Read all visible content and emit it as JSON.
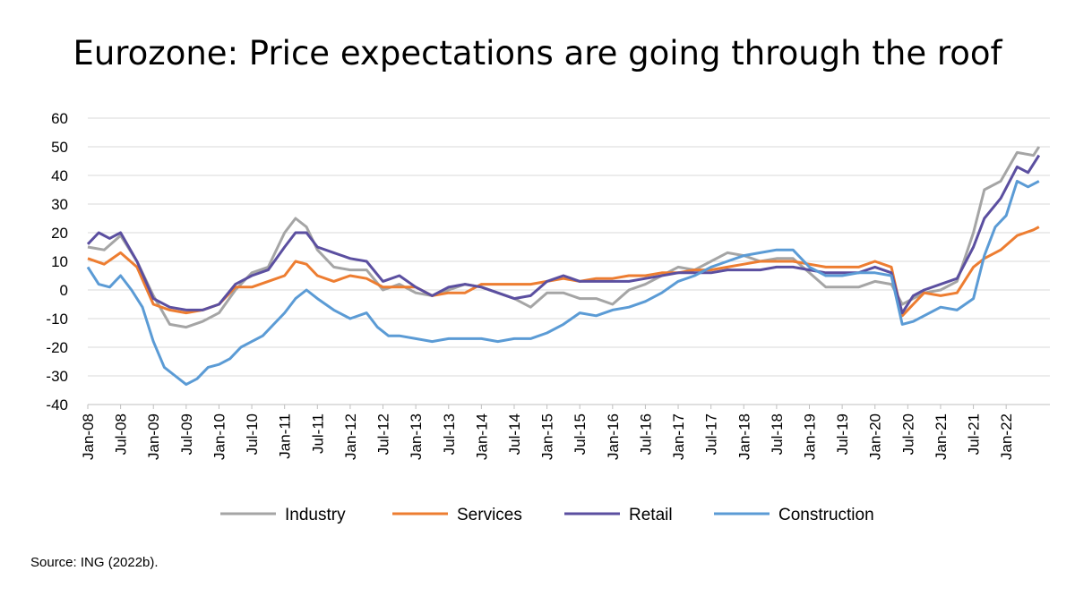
{
  "chart_data": {
    "type": "line",
    "title": "Eurozone: Price expectations are going through the roof",
    "xlabel": "",
    "ylabel": "",
    "ylim": [
      -40,
      60
    ],
    "yticks": [
      -40,
      -30,
      -20,
      -10,
      0,
      10,
      20,
      30,
      40,
      50,
      60
    ],
    "grid": true,
    "legend_position": "bottom",
    "xtick_labels": [
      "Jan-08",
      "Jul-08",
      "Jan-09",
      "Jul-09",
      "Jan-10",
      "Jul-10",
      "Jan-11",
      "Jul-11",
      "Jan-12",
      "Jul-12",
      "Jan-13",
      "Jul-13",
      "Jan-14",
      "Jul-14",
      "Jan-15",
      "Jul-15",
      "Jan-16",
      "Jul-16",
      "Jan-17",
      "Jul-17",
      "Jan-18",
      "Jul-18",
      "Jan-19",
      "Jul-19",
      "Jan-20",
      "Jul-20",
      "Jan-21",
      "Jul-21",
      "Jan-22"
    ],
    "x_unit": "months since Jan-08",
    "series": [
      {
        "name": "Industry",
        "color": "#a5a5a5",
        "points": [
          [
            0,
            15
          ],
          [
            3,
            14
          ],
          [
            6,
            19
          ],
          [
            9,
            10
          ],
          [
            12,
            -2
          ],
          [
            15,
            -12
          ],
          [
            18,
            -13
          ],
          [
            21,
            -11
          ],
          [
            24,
            -8
          ],
          [
            27,
            0
          ],
          [
            30,
            6
          ],
          [
            33,
            8
          ],
          [
            36,
            20
          ],
          [
            38,
            25
          ],
          [
            40,
            22
          ],
          [
            42,
            14
          ],
          [
            45,
            8
          ],
          [
            48,
            7
          ],
          [
            51,
            7
          ],
          [
            54,
            0
          ],
          [
            57,
            2
          ],
          [
            60,
            -1
          ],
          [
            63,
            -2
          ],
          [
            66,
            0
          ],
          [
            69,
            2
          ],
          [
            72,
            1
          ],
          [
            75,
            -1
          ],
          [
            78,
            -3
          ],
          [
            81,
            -6
          ],
          [
            84,
            -1
          ],
          [
            87,
            -1
          ],
          [
            90,
            -3
          ],
          [
            93,
            -3
          ],
          [
            96,
            -5
          ],
          [
            99,
            0
          ],
          [
            102,
            2
          ],
          [
            105,
            5
          ],
          [
            108,
            8
          ],
          [
            111,
            7
          ],
          [
            114,
            10
          ],
          [
            117,
            13
          ],
          [
            120,
            12
          ],
          [
            123,
            10
          ],
          [
            126,
            11
          ],
          [
            129,
            11
          ],
          [
            132,
            6
          ],
          [
            135,
            1
          ],
          [
            138,
            1
          ],
          [
            141,
            1
          ],
          [
            144,
            3
          ],
          [
            147,
            2
          ],
          [
            149,
            -5
          ],
          [
            151,
            -3
          ],
          [
            153,
            -1
          ],
          [
            156,
            0
          ],
          [
            159,
            3
          ],
          [
            162,
            20
          ],
          [
            164,
            35
          ],
          [
            167,
            38
          ],
          [
            170,
            48
          ],
          [
            173,
            47
          ],
          [
            174,
            50
          ]
        ]
      },
      {
        "name": "Services",
        "color": "#ed7d31",
        "points": [
          [
            0,
            11
          ],
          [
            3,
            9
          ],
          [
            6,
            13
          ],
          [
            9,
            8
          ],
          [
            12,
            -5
          ],
          [
            15,
            -7
          ],
          [
            18,
            -8
          ],
          [
            21,
            -7
          ],
          [
            24,
            -5
          ],
          [
            27,
            1
          ],
          [
            30,
            1
          ],
          [
            33,
            3
          ],
          [
            36,
            5
          ],
          [
            38,
            10
          ],
          [
            40,
            9
          ],
          [
            42,
            5
          ],
          [
            45,
            3
          ],
          [
            48,
            5
          ],
          [
            51,
            4
          ],
          [
            54,
            1
          ],
          [
            57,
            1
          ],
          [
            60,
            1
          ],
          [
            63,
            -2
          ],
          [
            66,
            -1
          ],
          [
            69,
            -1
          ],
          [
            72,
            2
          ],
          [
            75,
            2
          ],
          [
            78,
            2
          ],
          [
            81,
            2
          ],
          [
            84,
            3
          ],
          [
            87,
            4
          ],
          [
            90,
            3
          ],
          [
            93,
            4
          ],
          [
            96,
            4
          ],
          [
            99,
            5
          ],
          [
            102,
            5
          ],
          [
            105,
            6
          ],
          [
            108,
            6
          ],
          [
            111,
            7
          ],
          [
            114,
            7
          ],
          [
            117,
            8
          ],
          [
            120,
            9
          ],
          [
            123,
            10
          ],
          [
            126,
            10
          ],
          [
            129,
            10
          ],
          [
            132,
            9
          ],
          [
            135,
            8
          ],
          [
            138,
            8
          ],
          [
            141,
            8
          ],
          [
            144,
            10
          ],
          [
            147,
            8
          ],
          [
            149,
            -9
          ],
          [
            151,
            -5
          ],
          [
            153,
            -1
          ],
          [
            156,
            -2
          ],
          [
            159,
            -1
          ],
          [
            162,
            8
          ],
          [
            164,
            11
          ],
          [
            167,
            14
          ],
          [
            170,
            19
          ],
          [
            173,
            21
          ],
          [
            174,
            22
          ]
        ]
      },
      {
        "name": "Retail",
        "color": "#5b4fa0",
        "points": [
          [
            0,
            16
          ],
          [
            2,
            20
          ],
          [
            4,
            18
          ],
          [
            6,
            20
          ],
          [
            9,
            10
          ],
          [
            12,
            -3
          ],
          [
            15,
            -6
          ],
          [
            18,
            -7
          ],
          [
            21,
            -7
          ],
          [
            24,
            -5
          ],
          [
            27,
            2
          ],
          [
            30,
            5
          ],
          [
            33,
            7
          ],
          [
            36,
            15
          ],
          [
            38,
            20
          ],
          [
            40,
            20
          ],
          [
            42,
            15
          ],
          [
            45,
            13
          ],
          [
            48,
            11
          ],
          [
            51,
            10
          ],
          [
            54,
            3
          ],
          [
            57,
            5
          ],
          [
            60,
            1
          ],
          [
            63,
            -2
          ],
          [
            66,
            1
          ],
          [
            69,
            2
          ],
          [
            72,
            1
          ],
          [
            75,
            -1
          ],
          [
            78,
            -3
          ],
          [
            81,
            -2
          ],
          [
            84,
            3
          ],
          [
            87,
            5
          ],
          [
            90,
            3
          ],
          [
            93,
            3
          ],
          [
            96,
            3
          ],
          [
            99,
            3
          ],
          [
            102,
            4
          ],
          [
            105,
            5
          ],
          [
            108,
            6
          ],
          [
            111,
            6
          ],
          [
            114,
            6
          ],
          [
            117,
            7
          ],
          [
            120,
            7
          ],
          [
            123,
            7
          ],
          [
            126,
            8
          ],
          [
            129,
            8
          ],
          [
            132,
            7
          ],
          [
            135,
            6
          ],
          [
            138,
            6
          ],
          [
            141,
            6
          ],
          [
            144,
            8
          ],
          [
            147,
            6
          ],
          [
            149,
            -8
          ],
          [
            151,
            -2
          ],
          [
            153,
            0
          ],
          [
            156,
            2
          ],
          [
            159,
            4
          ],
          [
            162,
            15
          ],
          [
            164,
            25
          ],
          [
            167,
            32
          ],
          [
            170,
            43
          ],
          [
            172,
            41
          ],
          [
            174,
            47
          ]
        ]
      },
      {
        "name": "Construction",
        "color": "#5b9bd5",
        "points": [
          [
            0,
            8
          ],
          [
            2,
            2
          ],
          [
            4,
            1
          ],
          [
            6,
            5
          ],
          [
            8,
            0
          ],
          [
            10,
            -6
          ],
          [
            12,
            -18
          ],
          [
            14,
            -27
          ],
          [
            16,
            -30
          ],
          [
            18,
            -33
          ],
          [
            20,
            -31
          ],
          [
            22,
            -27
          ],
          [
            24,
            -26
          ],
          [
            26,
            -24
          ],
          [
            28,
            -20
          ],
          [
            30,
            -18
          ],
          [
            32,
            -16
          ],
          [
            34,
            -12
          ],
          [
            36,
            -8
          ],
          [
            38,
            -3
          ],
          [
            40,
            0
          ],
          [
            42,
            -3
          ],
          [
            45,
            -7
          ],
          [
            48,
            -10
          ],
          [
            51,
            -8
          ],
          [
            53,
            -13
          ],
          [
            55,
            -16
          ],
          [
            57,
            -16
          ],
          [
            60,
            -17
          ],
          [
            63,
            -18
          ],
          [
            66,
            -17
          ],
          [
            69,
            -17
          ],
          [
            72,
            -17
          ],
          [
            75,
            -18
          ],
          [
            78,
            -17
          ],
          [
            81,
            -17
          ],
          [
            84,
            -15
          ],
          [
            87,
            -12
          ],
          [
            90,
            -8
          ],
          [
            93,
            -9
          ],
          [
            96,
            -7
          ],
          [
            99,
            -6
          ],
          [
            102,
            -4
          ],
          [
            105,
            -1
          ],
          [
            108,
            3
          ],
          [
            111,
            5
          ],
          [
            114,
            8
          ],
          [
            117,
            10
          ],
          [
            120,
            12
          ],
          [
            123,
            13
          ],
          [
            126,
            14
          ],
          [
            129,
            14
          ],
          [
            132,
            8
          ],
          [
            135,
            5
          ],
          [
            138,
            5
          ],
          [
            141,
            6
          ],
          [
            144,
            6
          ],
          [
            147,
            5
          ],
          [
            149,
            -12
          ],
          [
            151,
            -11
          ],
          [
            153,
            -9
          ],
          [
            156,
            -6
          ],
          [
            159,
            -7
          ],
          [
            162,
            -3
          ],
          [
            164,
            12
          ],
          [
            166,
            22
          ],
          [
            168,
            26
          ],
          [
            170,
            38
          ],
          [
            172,
            36
          ],
          [
            174,
            38
          ]
        ]
      }
    ]
  },
  "footer": {
    "source": "Source: ING (2022b)."
  }
}
